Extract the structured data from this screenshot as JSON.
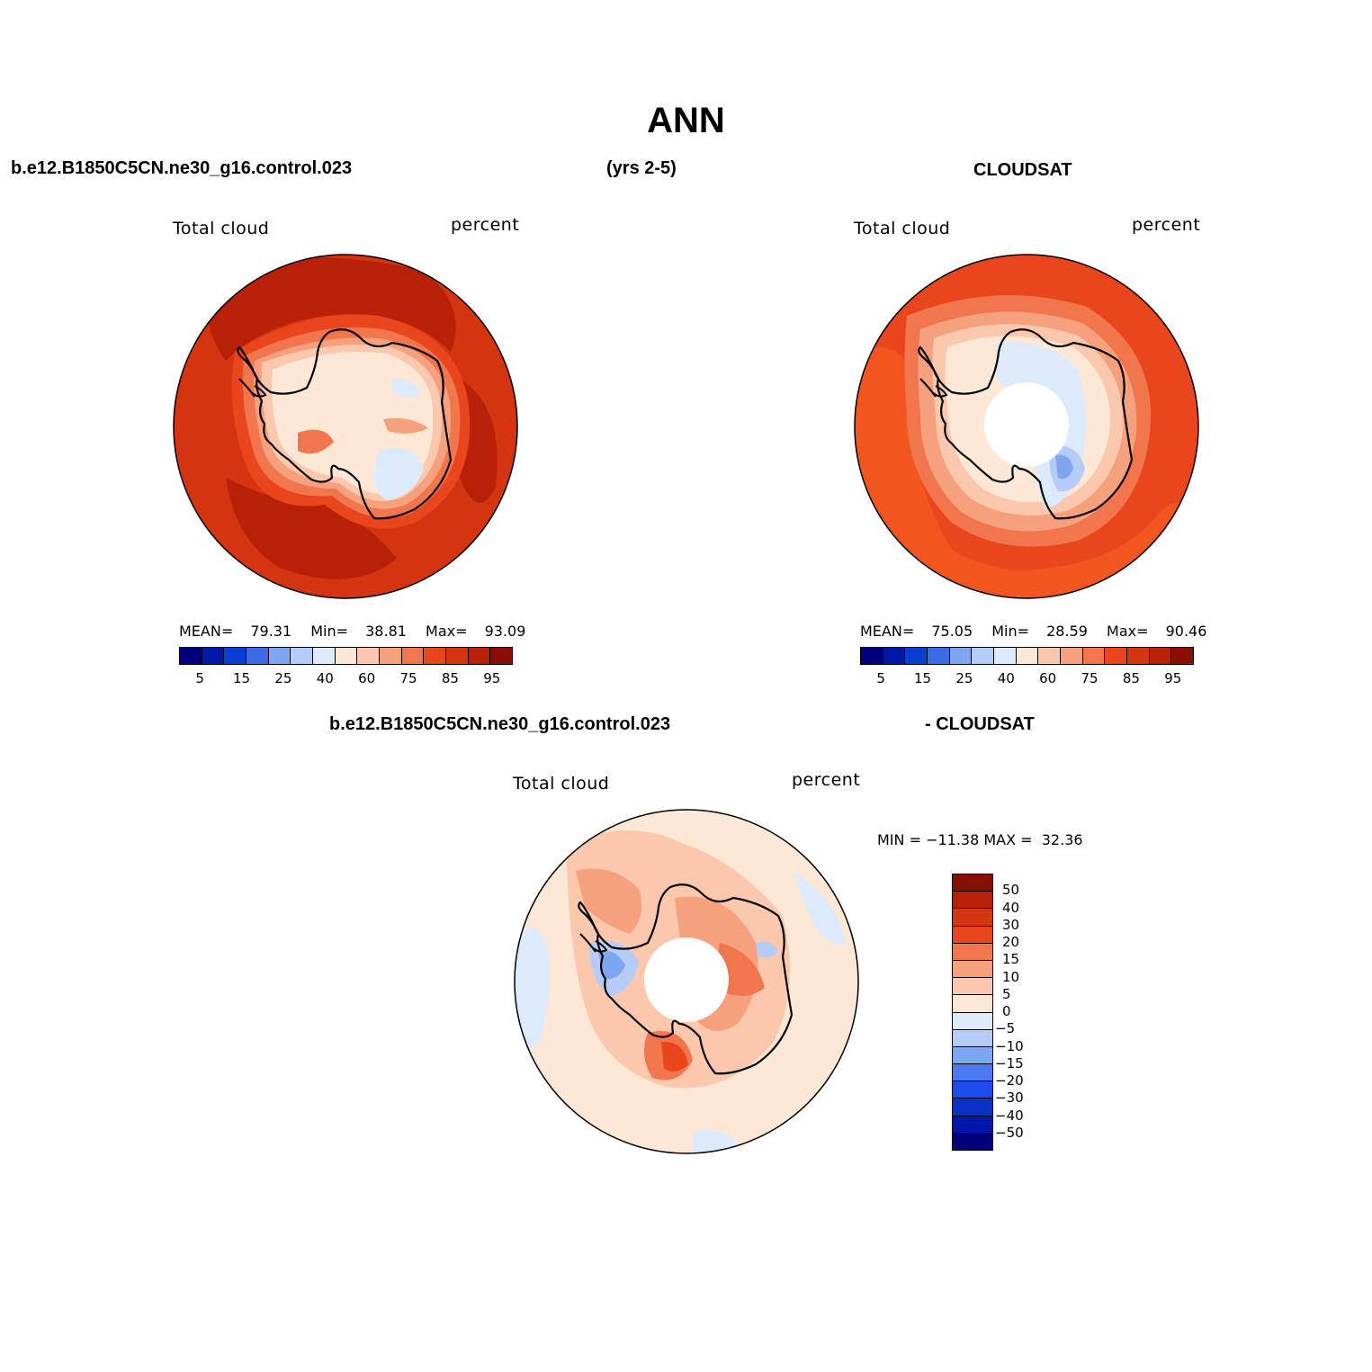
{
  "page": {
    "title": "ANN",
    "top_left_header": "b.e12.B1850C5CN.ne30_g16.control.023",
    "top_center_header": "(yrs 2-5)",
    "top_right_header": "CLOUDSAT",
    "diff_left_header": "b.e12.B1850C5CN.ne30_g16.control.023",
    "diff_right_header": "- CLOUDSAT"
  },
  "panels": {
    "model": {
      "variable": "Total cloud",
      "units": "percent",
      "stats": {
        "mean_label": "MEAN=",
        "mean": "79.31",
        "min_label": "Min=",
        "min": "38.81",
        "max_label": "Max=",
        "max": "93.09"
      }
    },
    "obs": {
      "variable": "Total cloud",
      "units": "percent",
      "stats": {
        "mean_label": "MEAN=",
        "mean": "75.05",
        "min_label": "Min=",
        "min": "28.59",
        "max_label": "Max=",
        "max": "90.46"
      }
    },
    "diff": {
      "variable": "Total cloud",
      "units": "percent",
      "minmax": "MIN = −11.38 MAX =  32.36"
    }
  },
  "colorbars": {
    "abs": {
      "colors": [
        "#00007f",
        "#0018a8",
        "#0a3fd6",
        "#3a6ce8",
        "#7fa6f0",
        "#b4ccf7",
        "#dceafc",
        "#fde8d6",
        "#fbc8ae",
        "#f7a07e",
        "#f2764d",
        "#e9461e",
        "#d53410",
        "#b82108",
        "#8a0d05"
      ],
      "tick_labels": [
        "5",
        "15",
        "25",
        "40",
        "60",
        "75",
        "85",
        "95"
      ]
    },
    "diff": {
      "colors_top_to_bottom": [
        "#8a0d05",
        "#b82108",
        "#d53410",
        "#e9461e",
        "#f2764d",
        "#f7a07e",
        "#fbc8ae",
        "#fde8d6",
        "#dceafc",
        "#b4ccf7",
        "#7fa6f0",
        "#4a78ee",
        "#1a4cf0",
        "#0a30c8",
        "#0018a8",
        "#00007f"
      ],
      "tick_labels": [
        "50",
        "40",
        "30",
        "20",
        "15",
        "10",
        "5",
        "0",
        "−5",
        "−10",
        "−15",
        "−20",
        "−30",
        "−40",
        "−50"
      ]
    }
  }
}
